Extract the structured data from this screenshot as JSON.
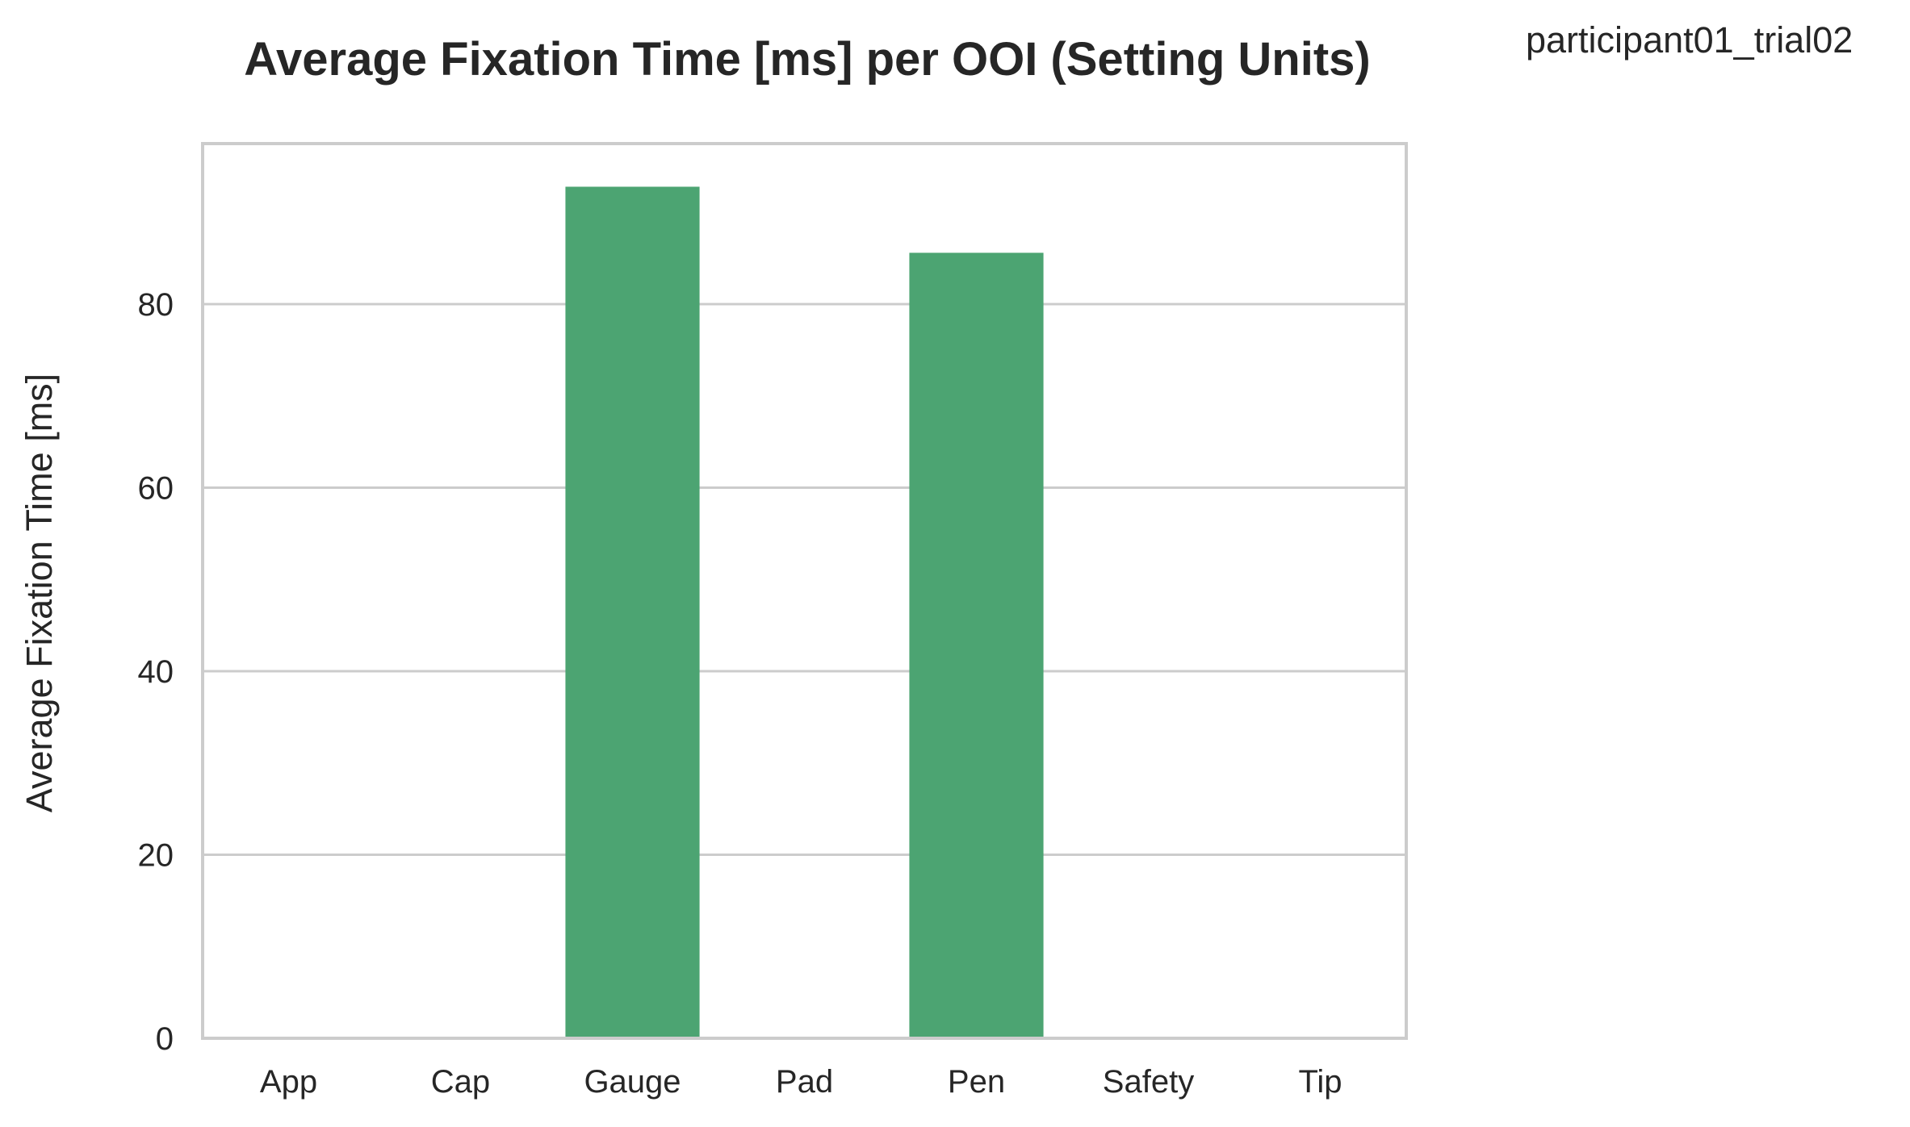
{
  "chart_data": {
    "type": "bar",
    "title": "Average Fixation Time [ms] per OOI (Setting Units)",
    "subtitle": "participant01_trial02",
    "xlabel": "",
    "ylabel": "Average Fixation Time [ms]",
    "categories": [
      "App",
      "Cap",
      "Gauge",
      "Pad",
      "Pen",
      "Safety",
      "Tip"
    ],
    "values": [
      0,
      0,
      92.8,
      0,
      85.6,
      0,
      0
    ],
    "ylim": [
      0,
      97.5
    ],
    "yticks": [
      0,
      20,
      40,
      60,
      80
    ],
    "grid": "horizontal",
    "bar_color": "#4ca472",
    "grid_color": "#cccccc",
    "frame_color": "#cccccc"
  }
}
